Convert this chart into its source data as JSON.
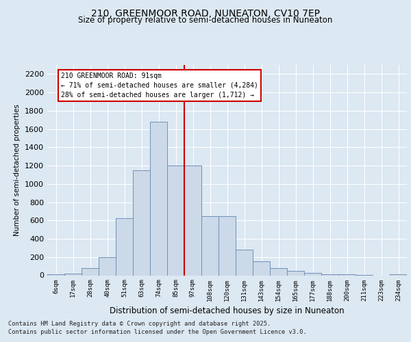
{
  "title1": "210, GREENMOOR ROAD, NUNEATON, CV10 7EP",
  "title2": "Size of property relative to semi-detached houses in Nuneaton",
  "xlabel": "Distribution of semi-detached houses by size in Nuneaton",
  "ylabel": "Number of semi-detached properties",
  "categories": [
    "6sqm",
    "17sqm",
    "28sqm",
    "40sqm",
    "51sqm",
    "63sqm",
    "74sqm",
    "85sqm",
    "97sqm",
    "108sqm",
    "120sqm",
    "131sqm",
    "143sqm",
    "154sqm",
    "165sqm",
    "177sqm",
    "188sqm",
    "200sqm",
    "211sqm",
    "223sqm",
    "234sqm"
  ],
  "values": [
    10,
    20,
    80,
    200,
    625,
    1150,
    1680,
    1200,
    1200,
    650,
    650,
    280,
    155,
    80,
    50,
    25,
    10,
    10,
    5,
    0,
    10
  ],
  "bar_color": "#ccd9e8",
  "bar_edge_color": "#7090b8",
  "vline_color": "#cc0000",
  "vline_pos": 7.5,
  "annotation_line1": "210 GREENMOOR ROAD: 91sqm",
  "annotation_line2": "← 71% of semi-detached houses are smaller (4,284)",
  "annotation_line3": "28% of semi-detached houses are larger (1,712) →",
  "background_color": "#dce8f2",
  "grid_color": "#ffffff",
  "footer1": "Contains HM Land Registry data © Crown copyright and database right 2025.",
  "footer2": "Contains public sector information licensed under the Open Government Licence v3.0.",
  "ylim": [
    0,
    2300
  ],
  "yticks": [
    0,
    200,
    400,
    600,
    800,
    1000,
    1200,
    1400,
    1600,
    1800,
    2000,
    2200
  ]
}
